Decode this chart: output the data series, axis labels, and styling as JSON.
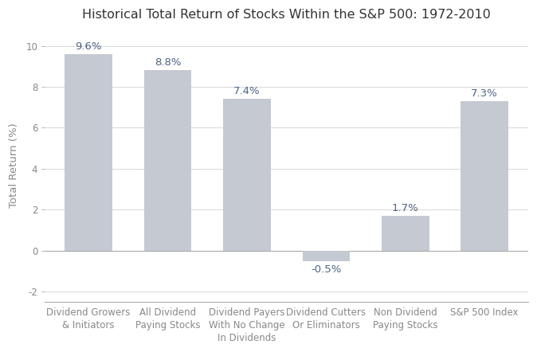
{
  "title": "Historical Total Return of Stocks Within the S&P 500: 1972-2010",
  "categories": [
    "Dividend Growers\n& Initiators",
    "All Dividend\nPaying Stocks",
    "Dividend Payers\nWith No Change\nIn Dividends",
    "Dividend Cutters\nOr Eliminators",
    "Non Dividend\nPaying Stocks",
    "S&P 500 Index"
  ],
  "values": [
    9.6,
    8.8,
    7.4,
    -0.5,
    1.7,
    7.3
  ],
  "labels": [
    "9.6%",
    "8.8%",
    "7.4%",
    "-0.5%",
    "1.7%",
    "7.3%"
  ],
  "bar_color": "#c4c9d2",
  "label_color": "#4d6480",
  "title_color": "#333333",
  "ylabel": "Total Return (%)",
  "ylim": [
    -2.5,
    10.8
  ],
  "yticks": [
    -2,
    0,
    2,
    4,
    6,
    8,
    10
  ],
  "background_color": "#ffffff",
  "bar_width": 0.6,
  "title_fontsize": 11.5,
  "label_fontsize": 9.5,
  "ylabel_fontsize": 9.5,
  "tick_fontsize": 8.5,
  "spine_color": "#aaaaaa",
  "grid_color": "#d8d8d8",
  "tick_color": "#888888"
}
